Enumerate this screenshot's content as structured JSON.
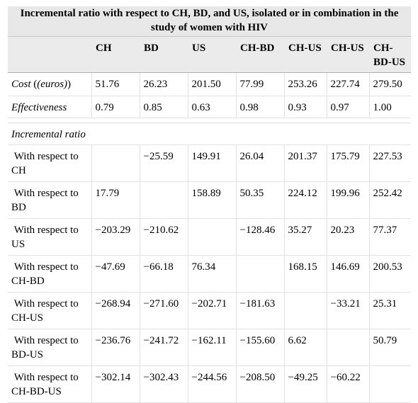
{
  "table": {
    "title": "Incremental ratio with respect to CH, BD, and US, isolated or in combination in the study of women with HIV",
    "columns": [
      "",
      "CH",
      "BD",
      "US",
      "CH-BD",
      "CH-US",
      "CH-US",
      "CH-BD-US"
    ],
    "col_header_lines": {
      "c7a": "CH-",
      "c7b": "BD-US"
    },
    "cost": {
      "label_main": "Cost",
      "label_unit": "(euros)",
      "values": [
        "51.76",
        "26.23",
        "201.50",
        "77.99",
        "253.26",
        "227.74",
        "279.50"
      ]
    },
    "effectiveness": {
      "label": "Effectiveness",
      "values": [
        "0.79",
        "0.85",
        "0.63",
        "0.98",
        "0.93",
        "0.97",
        "1.00"
      ]
    },
    "section_label": "Incremental ratio",
    "rows": [
      {
        "label": "With respect to CH",
        "values": [
          "",
          "−25.59",
          "149.91",
          "26.04",
          "201.37",
          "175.79",
          "227.53"
        ]
      },
      {
        "label": "With respect to BD",
        "values": [
          "17.79",
          "",
          "158.89",
          "50.35",
          "224.12",
          "199.96",
          "252.42"
        ]
      },
      {
        "label": "With respect to US",
        "values": [
          "−203.29",
          "−210.62",
          "",
          "−128.46",
          "35.27",
          "20.23",
          "77.37"
        ]
      },
      {
        "label": "With respect to CH-BD",
        "values": [
          "−47.69",
          "−66.18",
          "76.34",
          "",
          "168.15",
          "146.69",
          "200.53"
        ]
      },
      {
        "label": "With respect to CH-US",
        "values": [
          "−268.94",
          "−271.60",
          "−202.71",
          "−181.63",
          "",
          "−33.21",
          "25.31"
        ]
      },
      {
        "label": "With respect to BD-US",
        "values": [
          "−236.76",
          "−241.72",
          "−162.11",
          "−155.60",
          "6.62",
          "",
          "50.79"
        ]
      },
      {
        "label": "With respect to CH-BD-US",
        "values": [
          "−302.14",
          "−302.43",
          "−244.56",
          "−208.50",
          "−49.25",
          "−60.22",
          ""
        ]
      }
    ]
  }
}
